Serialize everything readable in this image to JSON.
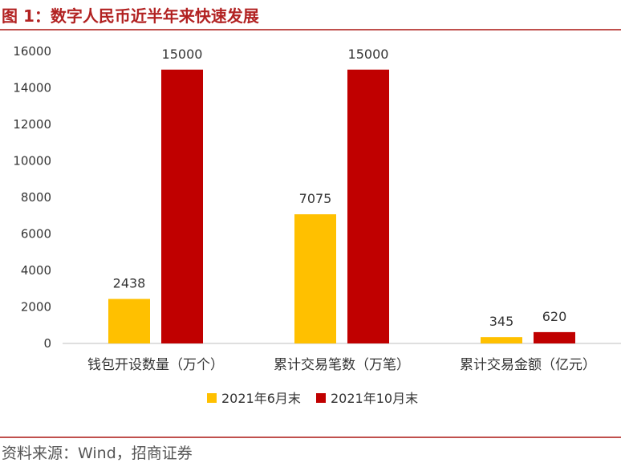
{
  "header": {
    "title": "图 1：数字人民币近半年来快速发展"
  },
  "footer": {
    "source": "资料来源：Wind，招商证券"
  },
  "colors": {
    "accent": "#c0504d",
    "title": "#b22222"
  },
  "chart_data": {
    "type": "bar",
    "categories": [
      "钱包开设数量（万个）",
      "累计交易笔数（万笔）",
      "累计交易金额（亿元）"
    ],
    "series": [
      {
        "name": "2021年6月末",
        "values": [
          2438,
          7075,
          345
        ],
        "color": "#ffc000"
      },
      {
        "name": "2021年10月末",
        "values": [
          15000,
          15000,
          620
        ],
        "color": "#c00000"
      }
    ],
    "yticks": [
      0,
      2000,
      4000,
      6000,
      8000,
      10000,
      12000,
      14000,
      16000
    ],
    "ylim": [
      0,
      16000
    ],
    "legend": "bottom",
    "grid": false
  }
}
